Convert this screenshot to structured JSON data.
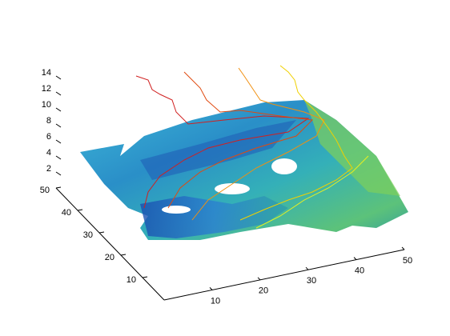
{
  "chart_data": {
    "type": "surface",
    "xlim": [
      0,
      50
    ],
    "xticks": [
      10,
      20,
      30,
      40,
      50
    ],
    "ylim": [
      0,
      50
    ],
    "yticks": [
      10,
      20,
      30,
      40,
      50
    ],
    "zlim": [
      0,
      14
    ],
    "zticks": [
      2,
      4,
      6,
      8,
      10,
      12,
      14
    ]
  }
}
